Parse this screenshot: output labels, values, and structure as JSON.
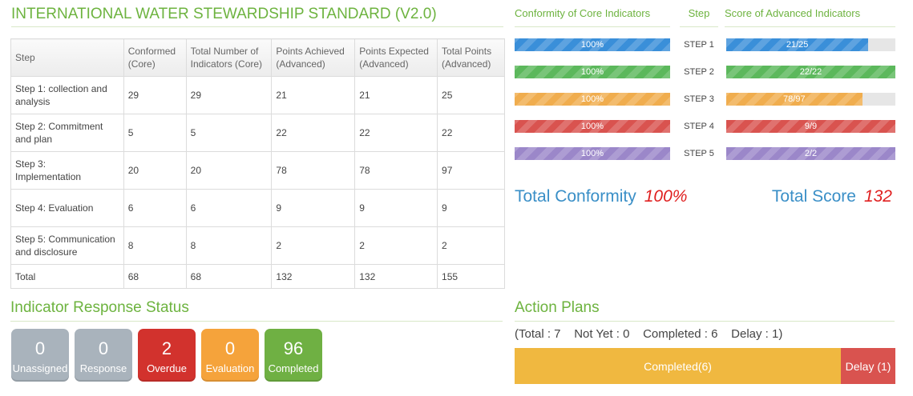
{
  "title": "INTERNATIONAL WATER STEWARDSHIP STANDARD (V2.0)",
  "table": {
    "headers": [
      "Step",
      "Conformed\n(Core)",
      "Total Number of\nIndicators (Core)",
      "Points Achieved\n(Advanced)",
      "Points Expected\n(Advanced)",
      "Total Points\n(Advanced)"
    ],
    "rows": [
      [
        "Step 1: collection and\nanalysis",
        "29",
        "29",
        "21",
        "21",
        "25"
      ],
      [
        "Step 2: Commitment\nand plan",
        "5",
        "5",
        "22",
        "22",
        "22"
      ],
      [
        "Step 3:\nImplementation",
        "20",
        "20",
        "78",
        "78",
        "97"
      ],
      [
        "Step 4: Evaluation",
        "6",
        "6",
        "9",
        "9",
        "9"
      ],
      [
        "Step 5: Communication\n and  disclosure",
        "8",
        "8",
        "2",
        "2",
        "2"
      ],
      [
        "Total",
        "68",
        "68",
        "132",
        "132",
        "155"
      ]
    ]
  },
  "right_panel": {
    "conformity_header": "Conformity of Core Indicators",
    "step_header": "Step",
    "score_header": "Score of Advanced Indicators",
    "steps": [
      {
        "label": "STEP 1",
        "conformity_text": "100%",
        "conformity_fraction": 1.0,
        "score_text": "21/25",
        "score_fraction": 0.84,
        "color": "#3a8fd9"
      },
      {
        "label": "STEP 2",
        "conformity_text": "100%",
        "conformity_fraction": 1.0,
        "score_text": "22/22",
        "score_fraction": 1.0,
        "color": "#5cb85c"
      },
      {
        "label": "STEP 3",
        "conformity_text": "100%",
        "conformity_fraction": 1.0,
        "score_text": "78/97",
        "score_fraction": 0.804,
        "color": "#f0ad4e"
      },
      {
        "label": "STEP 4",
        "conformity_text": "100%",
        "conformity_fraction": 1.0,
        "score_text": "9/9",
        "score_fraction": 1.0,
        "color": "#d9534f"
      },
      {
        "label": "STEP 5",
        "conformity_text": "100%",
        "conformity_fraction": 1.0,
        "score_text": "2/2",
        "score_fraction": 1.0,
        "color": "#9b87c9"
      }
    ],
    "total_conformity_label": "Total Conformity",
    "total_conformity_value": "100%",
    "total_score_label": "Total Score",
    "total_score_value": "132"
  },
  "indicator_status": {
    "title": "Indicator Response Status",
    "tiles": [
      {
        "value": "0",
        "label": "Unassigned",
        "color": "#a9b3bc"
      },
      {
        "value": "0",
        "label": "Response",
        "color": "#a9b3bc"
      },
      {
        "value": "2",
        "label": "Overdue",
        "color": "#d2322d"
      },
      {
        "value": "0",
        "label": "Evaluation",
        "color": "#f5a33b"
      },
      {
        "value": "96",
        "label": "Completed",
        "color": "#6fb043"
      }
    ]
  },
  "action_plans": {
    "title": "Action Plans",
    "summary": "(Total : 7    Not Yet : 0    Completed : 6    Delay : 1)",
    "segments": [
      {
        "label": "Completed(6)",
        "count": 6,
        "color": "#f0b840"
      },
      {
        "label": "Delay (1)",
        "count": 1,
        "color": "#d9534f"
      }
    ]
  }
}
